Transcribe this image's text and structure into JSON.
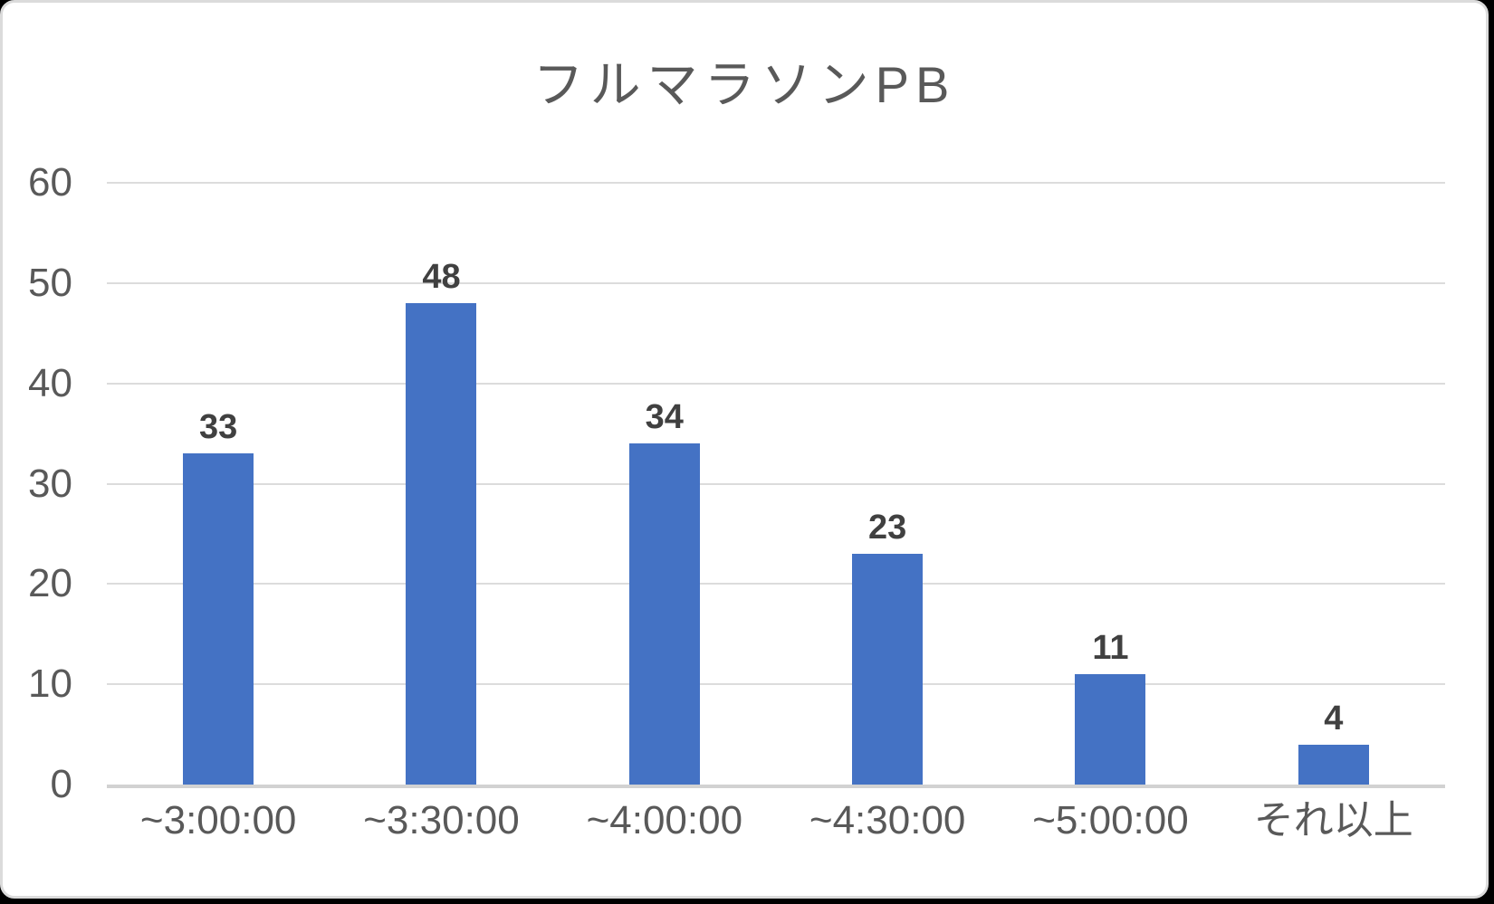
{
  "chart_data": {
    "type": "bar",
    "title": "フルマラソンPB",
    "categories": [
      "~3:00:00",
      "~3:30:00",
      "~4:00:00",
      "~4:30:00",
      "~5:00:00",
      "それ以上"
    ],
    "values": [
      33,
      48,
      34,
      23,
      11,
      4
    ],
    "data_labels": [
      "33",
      "48",
      "34",
      "23",
      "11",
      "4"
    ],
    "xlabel": "",
    "ylabel": "",
    "ylim": [
      0,
      60
    ],
    "ytick_step": 10,
    "ytick_labels": [
      "0",
      "10",
      "20",
      "30",
      "40",
      "50",
      "60"
    ],
    "grid": true,
    "legend_position": "none",
    "colors": {
      "bar": "#4472C4",
      "title_text": "#595959",
      "axis_text": "#595959",
      "data_label_text": "#404040",
      "gridline": "#dcdcdc",
      "axis_line": "#d2d2d2",
      "background": "#ffffff",
      "card_border": "#dbdbdb"
    }
  }
}
